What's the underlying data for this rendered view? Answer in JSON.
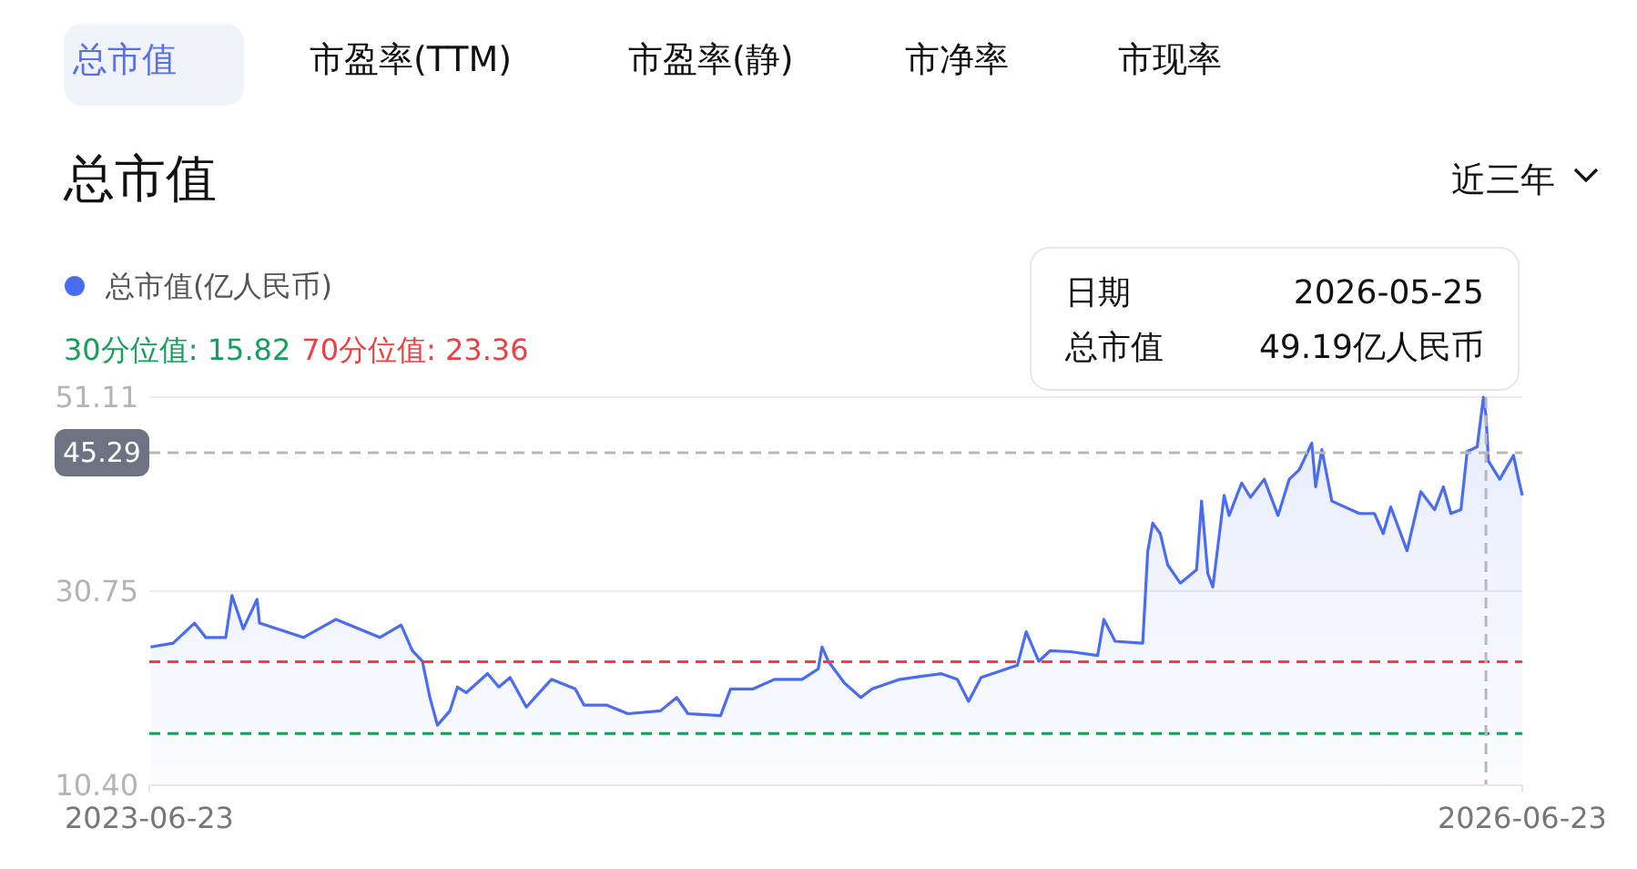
{
  "chart_data": {
    "type": "area",
    "title": "总市值",
    "legend": "top left",
    "grid": "y",
    "marker": "none",
    "line_style": "solid",
    "annotations": [
      "总市值",
      "市盈率(TTM)",
      "市盈率(静)",
      "市净率",
      "市现率",
      "近三年",
      "日期",
      "2026-05-25",
      "总市值",
      "49.19亿人民币"
    ],
    "xlim": [
      "2023-06-23",
      "2026-06-23"
    ],
    "xticks": [
      "2023-06-23",
      "2026-06-23"
    ],
    "ylim": [
      10.4,
      51.11
    ],
    "yticks": [
      {
        "value": 10.4,
        "label": "10.40"
      },
      {
        "value": 30.75,
        "label": "30.75"
      },
      {
        "value": 51.11,
        "label": "51.11"
      }
    ],
    "ref_lines": [
      {
        "axis": "y",
        "value": 15.82,
        "label": "30分位值: 15.82",
        "color": "#11a15c",
        "line_style": "dashed"
      },
      {
        "axis": "y",
        "value": 23.36,
        "label": "70分位值: 23.36",
        "color": "#ee4040",
        "line_style": "dashed"
      },
      {
        "axis": "y",
        "value": 45.29,
        "label": "45.29",
        "color": "#b8b8b8",
        "line_style": "dashed"
      },
      {
        "axis": "x",
        "value": "2026-05-25",
        "color": "#b8b8b8",
        "line_style": "dashed"
      }
    ],
    "series": [
      {
        "name": "总市值(亿人民币)",
        "color": "#4a6cf0",
        "x": [
          "2023-06-24",
          "2023-07-12",
          "2023-07-29",
          "2023-08-07",
          "2023-08-23",
          "2023-08-28",
          "2023-09-06",
          "2023-09-17",
          "2023-09-19",
          "2023-10-24",
          "2023-11-19",
          "2023-12-24",
          "2024-01-10",
          "2024-01-19",
          "2024-01-27",
          "2024-02-02",
          "2024-02-08",
          "2024-02-18",
          "2024-02-24",
          "2024-03-02",
          "2024-03-19",
          "2024-03-28",
          "2024-04-06",
          "2024-04-19",
          "2024-05-02",
          "2024-05-09",
          "2024-05-28",
          "2024-06-04",
          "2024-06-22",
          "2024-07-09",
          "2024-08-04",
          "2024-08-17",
          "2024-08-26",
          "2024-09-21",
          "2024-09-29",
          "2024-10-17",
          "2024-11-03",
          "2024-11-25",
          "2024-12-08",
          "2024-12-11",
          "2024-12-16",
          "2024-12-29",
          "2025-01-11",
          "2025-01-20",
          "2025-02-11",
          "2025-03-16",
          "2025-03-29",
          "2025-04-07",
          "2025-04-17",
          "2025-05-16",
          "2025-05-23",
          "2025-06-02",
          "2025-06-11",
          "2025-06-28",
          "2025-07-19",
          "2025-07-24",
          "2025-08-02",
          "2025-08-24",
          "2025-08-28",
          "2025-09-01",
          "2025-09-07",
          "2025-09-13",
          "2025-09-23",
          "2025-10-06",
          "2025-10-10",
          "2025-10-15",
          "2025-10-19",
          "2025-10-28",
          "2025-11-01",
          "2025-11-11",
          "2025-11-18",
          "2025-11-29",
          "2025-12-10",
          "2025-12-19",
          "2025-12-27",
          "2026-01-06",
          "2026-01-09",
          "2026-01-14",
          "2026-01-22",
          "2026-02-13",
          "2026-02-25",
          "2026-03-04",
          "2026-03-10",
          "2026-03-23",
          "2026-04-03",
          "2026-04-14",
          "2026-04-21",
          "2026-04-27",
          "2026-05-05",
          "2026-05-10",
          "2026-05-18",
          "2026-05-23",
          "2026-05-25",
          "2026-05-27",
          "2026-06-05",
          "2026-06-16",
          "2026-06-20",
          "2026-06-23"
        ],
        "values": [
          24.9,
          25.3,
          27.4,
          25.9,
          25.9,
          30.3,
          26.8,
          29.9,
          27.4,
          25.9,
          27.8,
          25.9,
          27.2,
          24.5,
          23.4,
          19.6,
          16.7,
          18.2,
          20.7,
          20.1,
          22.1,
          20.7,
          21.7,
          18.6,
          20.5,
          21.5,
          20.5,
          18.8,
          18.8,
          17.9,
          18.2,
          19.6,
          17.9,
          17.7,
          20.5,
          20.5,
          21.5,
          21.5,
          22.6,
          24.9,
          23.4,
          21.1,
          19.6,
          20.5,
          21.5,
          22.1,
          21.5,
          19.2,
          21.7,
          23.0,
          26.5,
          23.4,
          24.5,
          24.4,
          24.0,
          27.8,
          25.5,
          25.3,
          34.9,
          37.9,
          36.8,
          33.5,
          31.6,
          33.0,
          40.2,
          32.6,
          31.2,
          40.8,
          38.7,
          42.1,
          40.6,
          42.5,
          38.7,
          42.5,
          43.5,
          46.3,
          41.7,
          45.6,
          40.2,
          38.9,
          38.9,
          36.8,
          39.6,
          35.0,
          41.2,
          39.3,
          41.7,
          38.9,
          39.3,
          45.4,
          45.9,
          51.1,
          49.19,
          44.4,
          42.5,
          45.0,
          42.5,
          40.8
        ]
      }
    ]
  }
}
